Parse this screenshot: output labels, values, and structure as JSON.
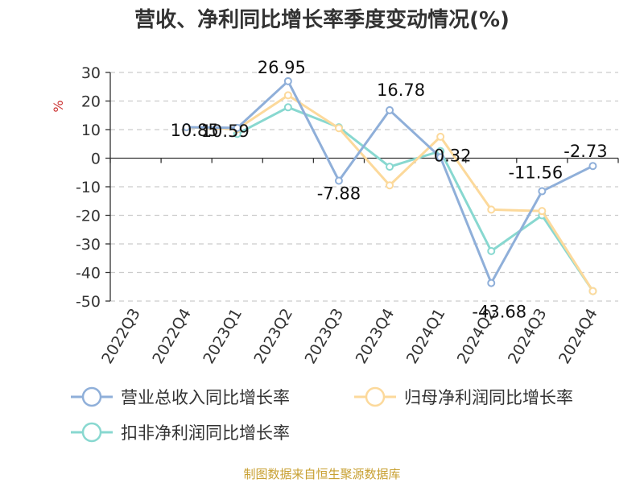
{
  "chart_data": {
    "type": "line",
    "title": "营收、净利同比增长率季度变动情况(%)",
    "ylabel": "%",
    "xlabel": "",
    "categories": [
      "2022Q3",
      "2022Q4",
      "2023Q1",
      "2023Q2",
      "2023Q3",
      "2023Q4",
      "2024Q1",
      "2024Q2",
      "2024Q3",
      "2024Q4"
    ],
    "ylim": [
      -50,
      30
    ],
    "yticks": [
      30,
      20,
      10,
      0,
      -10,
      -20,
      -30,
      -40,
      -50
    ],
    "grid": true,
    "legend_position": "bottom",
    "series": [
      {
        "name": "营业总收入同比增长率",
        "color": "#8fafd9",
        "values": [
          null,
          10.85,
          10.59,
          26.95,
          -7.88,
          16.78,
          0.32,
          -43.68,
          -11.56,
          -2.73
        ],
        "labels": [
          "",
          "10.85",
          "10.59",
          "26.95",
          "-7.88",
          "16.78",
          "0.32",
          "-43.68",
          "-11.56",
          "-2.73"
        ]
      },
      {
        "name": "归母净利润同比增长率",
        "color": "#fcd99b",
        "values": [
          null,
          10.8,
          10.2,
          22.0,
          10.5,
          -9.5,
          7.5,
          -18.0,
          -18.5,
          -46.5
        ]
      },
      {
        "name": "扣非净利润同比增长率",
        "color": "#88d8d0",
        "values": [
          null,
          null,
          8.5,
          17.8,
          10.8,
          -3.0,
          2.5,
          -32.5,
          -20.0,
          -46.5
        ]
      }
    ]
  },
  "source_note": "制图数据来自恒生聚源数据库"
}
